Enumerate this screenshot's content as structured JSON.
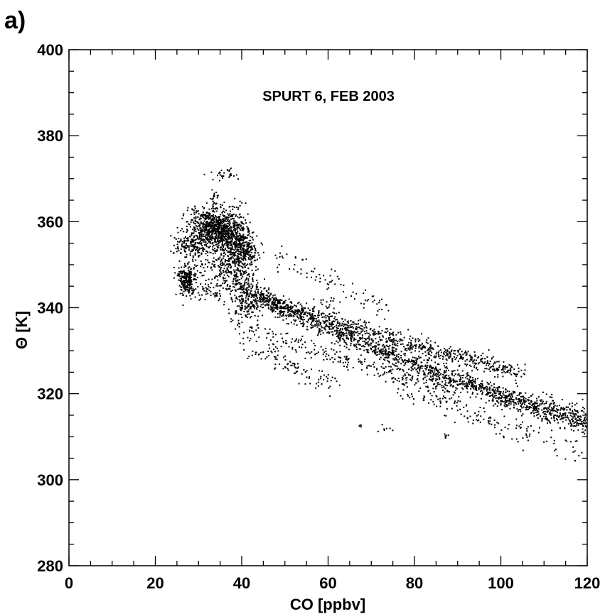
{
  "panel_label": "a)",
  "chart_data": {
    "type": "scatter",
    "title": "SPURT 6, FEB 2003",
    "xlabel": "CO [ppbv]",
    "ylabel": "Θ [K]",
    "xlim": [
      0,
      120
    ],
    "ylim": [
      280,
      400
    ],
    "xticks": [
      0,
      20,
      40,
      60,
      80,
      100,
      120
    ],
    "yticks": [
      280,
      300,
      320,
      340,
      360,
      380,
      400
    ],
    "x_minor_step": 5,
    "y_minor_step": 5,
    "grid": false,
    "marker_color": "#000000",
    "series": [
      {
        "clusters": [
          {
            "center": [
              33.5,
              358.5
            ],
            "spread": [
              2.8,
              2.2
            ],
            "count": 620
          },
          {
            "center": [
              37.5,
              356.5
            ],
            "spread": [
              2.2,
              3.0
            ],
            "count": 420
          },
          {
            "center": [
              41.0,
              353.0
            ],
            "spread": [
              1.6,
              2.2
            ],
            "count": 200
          },
          {
            "center": [
              28.0,
              354.5
            ],
            "spread": [
              2.0,
              1.4
            ],
            "count": 140
          },
          {
            "center": [
              27.2,
              346.5
            ],
            "spread": [
              0.9,
              1.8
            ],
            "count": 230
          },
          {
            "center": [
              39.0,
              347.0
            ],
            "spread": [
              2.0,
              2.2
            ],
            "count": 130
          },
          {
            "center": [
              34.5,
              350.0
            ],
            "spread": [
              3.5,
              2.5
            ],
            "count": 180
          },
          {
            "center": [
              33.5,
              364.5
            ],
            "spread": [
              0.6,
              1.4
            ],
            "count": 30
          },
          {
            "center": [
              36.0,
              371.0
            ],
            "spread": [
              1.8,
              0.8
            ],
            "count": 30
          },
          {
            "center": [
              30.0,
              362.0
            ],
            "spread": [
              1.2,
              1.2
            ],
            "count": 25
          },
          {
            "center": [
              33.0,
              344.0
            ],
            "spread": [
              3.0,
              1.5
            ],
            "count": 70
          },
          {
            "center": [
              41.0,
              340.0
            ],
            "spread": [
              1.8,
              1.5
            ],
            "count": 90
          },
          {
            "center": [
              44.0,
              343.5
            ],
            "spread": [
              1.5,
              1.2
            ],
            "count": 45
          }
        ],
        "branches": [
          {
            "start": [
              40,
              344
            ],
            "end": [
              120,
              313
            ],
            "count": 1500,
            "width": 2.4,
            "sag": -1.5
          },
          {
            "start": [
              45,
              342
            ],
            "end": [
              105,
              325
            ],
            "count": 700,
            "width": 2.0,
            "sag": -0.8
          },
          {
            "start": [
              38,
              336
            ],
            "end": [
              90,
              320
            ],
            "count": 250,
            "width": 2.2,
            "sag": 0.0
          },
          {
            "start": [
              40,
              331
            ],
            "end": [
              63,
              321
            ],
            "count": 90,
            "width": 2.6,
            "sag": 0.0
          },
          {
            "start": [
              48,
              352
            ],
            "end": [
              75,
              339
            ],
            "count": 80,
            "width": 2.6,
            "sag": 0.0
          },
          {
            "start": [
              75,
              322
            ],
            "end": [
              120,
              306
            ],
            "count": 160,
            "width": 3.0,
            "sag": 0.0
          },
          {
            "start": [
              100,
              318
            ],
            "end": [
              120,
              316
            ],
            "count": 120,
            "width": 3.0,
            "sag": 0.0
          }
        ],
        "scatter": [
          {
            "center": [
              67.5,
              312.5
            ],
            "spread": [
              0.4,
              0.3
            ],
            "count": 4
          },
          {
            "center": [
              73.0,
              311.5
            ],
            "spread": [
              0.8,
              0.5
            ],
            "count": 7
          },
          {
            "center": [
              87.5,
              310.0
            ],
            "spread": [
              0.6,
              0.3
            ],
            "count": 6
          },
          {
            "center": [
              100.5,
              310.0
            ],
            "spread": [
              0.4,
              0.3
            ],
            "count": 3
          },
          {
            "center": [
              52.0,
              326.5
            ],
            "spread": [
              0.6,
              0.5
            ],
            "count": 6
          },
          {
            "center": [
              47.0,
              330.0
            ],
            "spread": [
              1.0,
              0.8
            ],
            "count": 10
          },
          {
            "center": [
              60.0,
              341.0
            ],
            "spread": [
              2.0,
              1.5
            ],
            "count": 20
          }
        ]
      }
    ]
  }
}
